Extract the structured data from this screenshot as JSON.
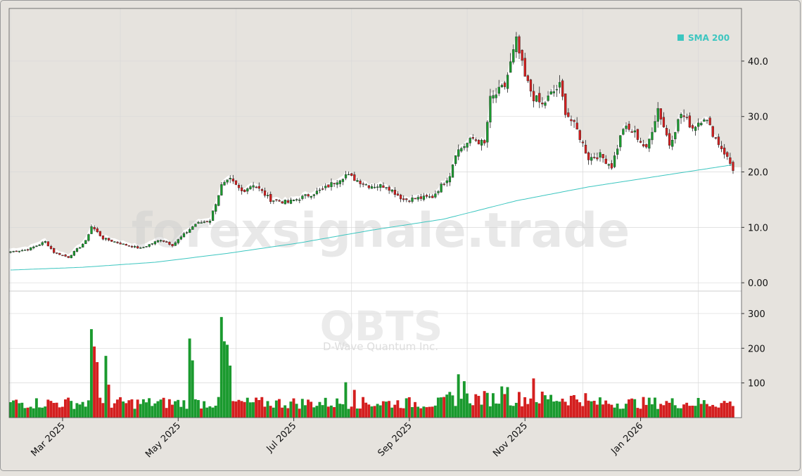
{
  "chart_data": {
    "type": "candlestick",
    "watermark": {
      "site": "forexsignale.trade",
      "ticker": "QBTS",
      "company": "D-Wave Quantum Inc."
    },
    "legend": {
      "label": "SMA 200",
      "color": "#3cc6c0",
      "placement": "top-right"
    },
    "colors": {
      "up": "#1a9a2e",
      "down": "#d41f1f",
      "sma": "#3cc6c0"
    },
    "price_axis": {
      "ticks": [
        "0.00",
        "10.0",
        "20.0",
        "30.0",
        "40.0"
      ],
      "values": [
        0,
        10,
        20,
        30,
        40
      ],
      "ylim": [
        -1.5,
        49.5
      ],
      "position": "right"
    },
    "volume_axis": {
      "ticks": [
        "100",
        "200",
        "300"
      ],
      "values": [
        100,
        200,
        300
      ],
      "ylim": [
        0,
        310
      ],
      "position": "right"
    },
    "x_axis": {
      "tick_labels": [
        "Mar 2025",
        "May 2025",
        "Jul 2025",
        "Sep 2025",
        "Nov 2025",
        "Jan 2026"
      ],
      "tick_index": [
        18,
        58,
        98,
        138,
        178,
        218
      ],
      "month_boundary_index": [
        0,
        38,
        78,
        118,
        158,
        198,
        238
      ]
    },
    "grid": true,
    "price_keyframes": [
      [
        0,
        5.6
      ],
      [
        6,
        6.0
      ],
      [
        12,
        7.4
      ],
      [
        15,
        5.5
      ],
      [
        20,
        4.6
      ],
      [
        26,
        7.5
      ],
      [
        28,
        10.2
      ],
      [
        32,
        8.0
      ],
      [
        40,
        6.8
      ],
      [
        45,
        6.2
      ],
      [
        52,
        7.8
      ],
      [
        56,
        6.8
      ],
      [
        64,
        10.6
      ],
      [
        69,
        11.3
      ],
      [
        73,
        17.5
      ],
      [
        76,
        18.5
      ],
      [
        80,
        16.5
      ],
      [
        84,
        17.8
      ],
      [
        90,
        15.0
      ],
      [
        96,
        14.5
      ],
      [
        104,
        16.0
      ],
      [
        108,
        16.8
      ],
      [
        116,
        19.5
      ],
      [
        124,
        17.5
      ],
      [
        130,
        17.5
      ],
      [
        136,
        15.0
      ],
      [
        146,
        15.5
      ],
      [
        152,
        19.5
      ],
      [
        154,
        23.5
      ],
      [
        160,
        26.0
      ],
      [
        164,
        25.0
      ],
      [
        166,
        33.0
      ],
      [
        171,
        35.5
      ],
      [
        175,
        43.5
      ],
      [
        178,
        37.0
      ],
      [
        181,
        33.5
      ],
      [
        184,
        32.0
      ],
      [
        187,
        34.0
      ],
      [
        190,
        35.5
      ],
      [
        192,
        31.0
      ],
      [
        196,
        27.5
      ],
      [
        200,
        22.5
      ],
      [
        204,
        23.0
      ],
      [
        208,
        21.0
      ],
      [
        212,
        28.0
      ],
      [
        216,
        27.0
      ],
      [
        220,
        24.0
      ],
      [
        224,
        31.5
      ],
      [
        228,
        25.0
      ],
      [
        232,
        30.5
      ],
      [
        236,
        28.0
      ],
      [
        240,
        30.0
      ],
      [
        244,
        26.0
      ],
      [
        247,
        23.5
      ],
      [
        250,
        20.5
      ]
    ],
    "sma200": [
      [
        0,
        2.3
      ],
      [
        25,
        2.8
      ],
      [
        50,
        3.7
      ],
      [
        75,
        5.3
      ],
      [
        100,
        7.2
      ],
      [
        125,
        9.5
      ],
      [
        150,
        11.5
      ],
      [
        175,
        14.8
      ],
      [
        200,
        17.3
      ],
      [
        225,
        19.3
      ],
      [
        250,
        21.3
      ]
    ],
    "volume_spikes": [
      [
        28,
        255
      ],
      [
        29,
        205
      ],
      [
        30,
        160
      ],
      [
        33,
        178
      ],
      [
        34,
        95
      ],
      [
        62,
        228
      ],
      [
        63,
        165
      ],
      [
        73,
        290
      ],
      [
        74,
        220
      ],
      [
        75,
        210
      ],
      [
        76,
        150
      ],
      [
        155,
        125
      ],
      [
        157,
        105
      ],
      [
        116,
        102
      ],
      [
        119,
        80
      ],
      [
        181,
        113
      ],
      [
        170,
        90
      ],
      [
        172,
        88
      ]
    ],
    "volume_base": 50,
    "n_bars": 251
  }
}
